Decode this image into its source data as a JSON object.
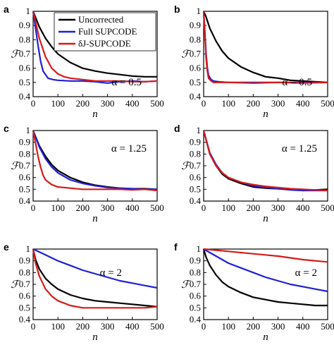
{
  "figure": {
    "legend": [
      {
        "name": "Uncorrected",
        "color": "#000000"
      },
      {
        "name": "Full SUPCODE",
        "color": "#1f1fd6"
      },
      {
        "name": "δJ-SUPCODE",
        "color": "#d61a1a"
      }
    ]
  },
  "chart_data": [
    {
      "panel": "a",
      "type": "line",
      "annotation": "α = 0.5",
      "xlabel": "n",
      "ylabel": "ℱ",
      "xlim": [
        0,
        500
      ],
      "ylim": [
        0.4,
        1.0
      ],
      "xticks": [
        0,
        100,
        200,
        300,
        400,
        500
      ],
      "yticks": [
        0.4,
        0.5,
        0.6,
        0.7,
        0.8,
        0.9,
        1
      ],
      "grid": false,
      "legend_position": "top-right",
      "series": [
        {
          "name": "Uncorrected",
          "color": "#000000",
          "x": [
            0,
            25,
            50,
            75,
            100,
            150,
            200,
            250,
            300,
            350,
            400,
            450,
            500
          ],
          "y": [
            1.0,
            0.89,
            0.81,
            0.75,
            0.7,
            0.64,
            0.6,
            0.58,
            0.565,
            0.555,
            0.545,
            0.54,
            0.54
          ]
        },
        {
          "name": "Full SUPCODE",
          "color": "#1f1fd6",
          "x": [
            0,
            10,
            20,
            30,
            40,
            60,
            80,
            100,
            150,
            200,
            250,
            300,
            350,
            400,
            450,
            500
          ],
          "y": [
            1.0,
            0.88,
            0.76,
            0.65,
            0.58,
            0.53,
            0.52,
            0.515,
            0.51,
            0.51,
            0.505,
            0.495,
            0.505,
            0.51,
            0.505,
            0.51
          ]
        },
        {
          "name": "δJ-SUPCODE",
          "color": "#d61a1a",
          "x": [
            0,
            25,
            50,
            75,
            100,
            125,
            150,
            200,
            250,
            300,
            350,
            400,
            450,
            500
          ],
          "y": [
            1.0,
            0.81,
            0.68,
            0.6,
            0.56,
            0.54,
            0.53,
            0.52,
            0.51,
            0.51,
            0.51,
            0.505,
            0.505,
            0.51
          ]
        }
      ]
    },
    {
      "panel": "b",
      "type": "line",
      "annotation": "α = 0.5",
      "xlabel": "n",
      "ylabel": "ℱ",
      "xlim": [
        0,
        500
      ],
      "ylim": [
        0.4,
        1.0
      ],
      "xticks": [
        0,
        100,
        200,
        300,
        400,
        500
      ],
      "yticks": [
        0.4,
        0.5,
        0.6,
        0.7,
        0.8,
        0.9,
        1
      ],
      "grid": false,
      "series": [
        {
          "name": "Uncorrected",
          "color": "#000000",
          "x": [
            0,
            10,
            25,
            50,
            75,
            100,
            150,
            200,
            250,
            300,
            350,
            400,
            450,
            500
          ],
          "y": [
            1.0,
            0.96,
            0.88,
            0.79,
            0.72,
            0.67,
            0.61,
            0.57,
            0.54,
            0.53,
            0.515,
            0.51,
            0.505,
            0.5
          ]
        },
        {
          "name": "Full SUPCODE",
          "color": "#1f1fd6",
          "x": [
            0,
            5,
            10,
            15,
            20,
            30,
            40,
            60,
            100,
            200,
            300,
            400,
            500
          ],
          "y": [
            1.0,
            0.85,
            0.7,
            0.6,
            0.55,
            0.52,
            0.51,
            0.505,
            0.5,
            0.5,
            0.5,
            0.5,
            0.5
          ]
        },
        {
          "name": "δJ-SUPCODE",
          "color": "#d61a1a",
          "x": [
            0,
            5,
            10,
            15,
            20,
            30,
            40,
            60,
            100,
            200,
            300,
            400,
            500
          ],
          "y": [
            1.0,
            0.83,
            0.67,
            0.58,
            0.53,
            0.51,
            0.5,
            0.5,
            0.5,
            0.495,
            0.5,
            0.495,
            0.5
          ]
        }
      ]
    },
    {
      "panel": "c",
      "type": "line",
      "annotation": "α = 1.25",
      "xlabel": "n",
      "ylabel": "ℱ",
      "xlim": [
        0,
        500
      ],
      "ylim": [
        0.4,
        1.0
      ],
      "xticks": [
        0,
        100,
        200,
        300,
        400,
        500
      ],
      "yticks": [
        0.4,
        0.5,
        0.6,
        0.7,
        0.8,
        0.9,
        1
      ],
      "grid": false,
      "series": [
        {
          "name": "Uncorrected",
          "color": "#000000",
          "x": [
            0,
            25,
            50,
            75,
            100,
            150,
            200,
            250,
            300,
            350,
            400,
            450,
            500
          ],
          "y": [
            1.0,
            0.87,
            0.78,
            0.71,
            0.66,
            0.6,
            0.56,
            0.535,
            0.52,
            0.51,
            0.505,
            0.505,
            0.5
          ]
        },
        {
          "name": "Full SUPCODE",
          "color": "#1f1fd6",
          "x": [
            0,
            25,
            50,
            75,
            100,
            150,
            200,
            250,
            300,
            350,
            400,
            450,
            500
          ],
          "y": [
            1.0,
            0.86,
            0.76,
            0.69,
            0.64,
            0.58,
            0.55,
            0.53,
            0.515,
            0.51,
            0.505,
            0.5,
            0.5
          ]
        },
        {
          "name": "δJ-SUPCODE",
          "color": "#d61a1a",
          "x": [
            0,
            10,
            20,
            30,
            40,
            50,
            75,
            100,
            150,
            200,
            250,
            300,
            350,
            400,
            450,
            500
          ],
          "y": [
            1.0,
            0.89,
            0.78,
            0.69,
            0.62,
            0.58,
            0.54,
            0.52,
            0.51,
            0.5,
            0.5,
            0.5,
            0.5,
            0.495,
            0.5,
            0.49
          ]
        }
      ]
    },
    {
      "panel": "d",
      "type": "line",
      "annotation": "α = 1.25",
      "xlabel": "n",
      "ylabel": "ℱ",
      "xlim": [
        0,
        500
      ],
      "ylim": [
        0.4,
        1.0
      ],
      "xticks": [
        0,
        100,
        200,
        300,
        400,
        500
      ],
      "yticks": [
        0.4,
        0.5,
        0.6,
        0.7,
        0.8,
        0.9,
        1
      ],
      "grid": false,
      "series": [
        {
          "name": "Uncorrected",
          "color": "#000000",
          "x": [
            0,
            25,
            50,
            75,
            100,
            150,
            200,
            250,
            300,
            350,
            400,
            450,
            500
          ],
          "y": [
            1.0,
            0.8,
            0.7,
            0.63,
            0.59,
            0.55,
            0.52,
            0.51,
            0.505,
            0.5,
            0.49,
            0.495,
            0.5
          ]
        },
        {
          "name": "Full SUPCODE",
          "color": "#1f1fd6",
          "x": [
            0,
            25,
            50,
            75,
            100,
            150,
            200,
            250,
            300,
            350,
            400,
            450,
            500
          ],
          "y": [
            1.0,
            0.81,
            0.71,
            0.64,
            0.6,
            0.56,
            0.53,
            0.515,
            0.505,
            0.495,
            0.49,
            0.49,
            0.49
          ]
        },
        {
          "name": "δJ-SUPCODE",
          "color": "#d61a1a",
          "x": [
            0,
            25,
            50,
            75,
            100,
            150,
            200,
            250,
            300,
            350,
            400,
            450,
            500
          ],
          "y": [
            1.0,
            0.8,
            0.7,
            0.64,
            0.6,
            0.56,
            0.54,
            0.525,
            0.515,
            0.505,
            0.5,
            0.495,
            0.49
          ]
        }
      ]
    },
    {
      "panel": "e",
      "type": "line",
      "annotation": "α = 2",
      "xlabel": "n",
      "ylabel": "ℱ",
      "xlim": [
        0,
        500
      ],
      "ylim": [
        0.4,
        1.0
      ],
      "xticks": [
        0,
        100,
        200,
        300,
        400,
        500
      ],
      "yticks": [
        0.4,
        0.5,
        0.6,
        0.7,
        0.8,
        0.9,
        1
      ],
      "grid": false,
      "series": [
        {
          "name": "Uncorrected",
          "color": "#000000",
          "x": [
            0,
            10,
            25,
            50,
            75,
            100,
            150,
            200,
            250,
            300,
            350,
            400,
            450,
            500
          ],
          "y": [
            1.0,
            0.91,
            0.83,
            0.75,
            0.7,
            0.66,
            0.61,
            0.58,
            0.56,
            0.55,
            0.54,
            0.53,
            0.52,
            0.51
          ]
        },
        {
          "name": "Full SUPCODE",
          "color": "#1f1fd6",
          "x": [
            0,
            50,
            100,
            150,
            200,
            250,
            300,
            350,
            400,
            450,
            500
          ],
          "y": [
            1.0,
            0.95,
            0.9,
            0.86,
            0.82,
            0.79,
            0.76,
            0.73,
            0.71,
            0.69,
            0.67
          ]
        },
        {
          "name": "δJ-SUPCODE",
          "color": "#d61a1a",
          "x": [
            0,
            10,
            25,
            50,
            75,
            100,
            125,
            150,
            175,
            200,
            250,
            300,
            350,
            400,
            450,
            500
          ],
          "y": [
            1.0,
            0.88,
            0.77,
            0.66,
            0.6,
            0.56,
            0.54,
            0.52,
            0.51,
            0.5,
            0.5,
            0.5,
            0.5,
            0.5,
            0.5,
            0.51
          ]
        }
      ]
    },
    {
      "panel": "f",
      "type": "line",
      "annotation": "α = 2",
      "xlabel": "n",
      "ylabel": "ℱ",
      "xlim": [
        0,
        500
      ],
      "ylim": [
        0.4,
        1.0
      ],
      "xticks": [
        0,
        100,
        200,
        300,
        400,
        500
      ],
      "yticks": [
        0.4,
        0.5,
        0.6,
        0.7,
        0.8,
        0.9,
        1
      ],
      "grid": false,
      "series": [
        {
          "name": "Uncorrected",
          "color": "#000000",
          "x": [
            0,
            10,
            25,
            50,
            75,
            100,
            150,
            200,
            250,
            300,
            350,
            400,
            450,
            500
          ],
          "y": [
            1.0,
            0.93,
            0.86,
            0.78,
            0.72,
            0.68,
            0.63,
            0.59,
            0.57,
            0.55,
            0.54,
            0.53,
            0.52,
            0.52
          ]
        },
        {
          "name": "Full SUPCODE",
          "color": "#1f1fd6",
          "x": [
            0,
            50,
            100,
            150,
            200,
            250,
            300,
            350,
            400,
            450,
            500
          ],
          "y": [
            1.0,
            0.94,
            0.88,
            0.84,
            0.8,
            0.76,
            0.73,
            0.7,
            0.68,
            0.66,
            0.64
          ]
        },
        {
          "name": "δJ-SUPCODE",
          "color": "#d61a1a",
          "x": [
            0,
            100,
            200,
            300,
            400,
            500
          ],
          "y": [
            1.0,
            0.98,
            0.96,
            0.94,
            0.91,
            0.89
          ]
        }
      ]
    }
  ]
}
